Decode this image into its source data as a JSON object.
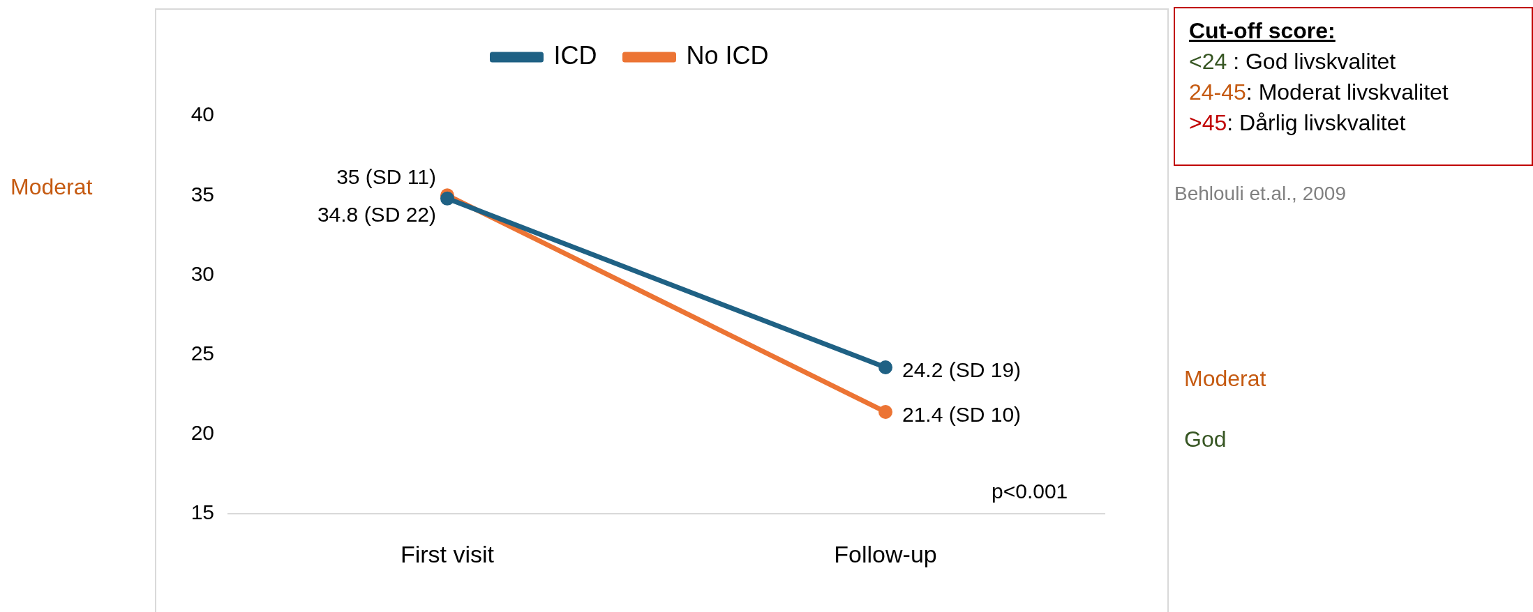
{
  "chart_data": {
    "type": "line",
    "categories": [
      "First visit",
      "Follow-up"
    ],
    "series": [
      {
        "name": "ICD",
        "color": "#1f6184",
        "values": [
          34.8,
          24.2
        ],
        "value_labels": [
          "34.8 (SD 22)",
          "24.2 (SD 19)"
        ]
      },
      {
        "name": "No ICD",
        "color": "#ec7434",
        "values": [
          35,
          21.4
        ],
        "value_labels": [
          "35 (SD 11)",
          "21.4 (SD 10)"
        ]
      }
    ],
    "ylim": [
      15,
      40
    ],
    "yticks": [
      15,
      20,
      25,
      30,
      35,
      40
    ],
    "grid": false,
    "legend": "top",
    "marker": "circle",
    "line_style": "solid",
    "annotations": [
      "Cut-off score:",
      "<24 : God livskvalitet",
      "24-45: Moderat livskvalitet",
      ">45: Dårlig livskvalitet",
      "Behlouli et.al., 2009",
      "p<0.001",
      "Moderat",
      "Moderat",
      "God"
    ]
  }
}
